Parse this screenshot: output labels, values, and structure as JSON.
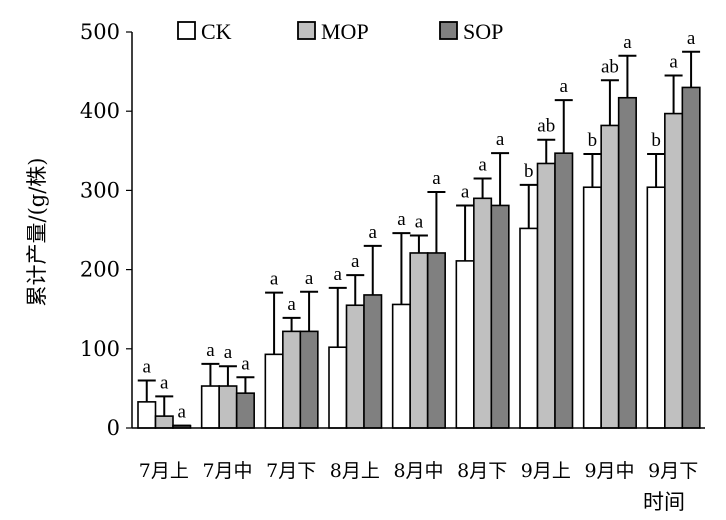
{
  "chart_data": {
    "type": "bar",
    "title": "",
    "xlabel": "时间",
    "ylabel": "累计产量/(g/株)",
    "ylim": [
      0,
      500
    ],
    "yticks": [
      0,
      100,
      200,
      300,
      400,
      500
    ],
    "categories": [
      "7月上",
      "7月中",
      "7月下",
      "8月上",
      "8月中",
      "8月下",
      "9月上",
      "9月中",
      "9月下"
    ],
    "legend_position": "top",
    "series": [
      {
        "name": "CK",
        "color": "#ffffff",
        "values": [
          33,
          53,
          93,
          102,
          156,
          211,
          252,
          304,
          304
        ],
        "errors": [
          27,
          28,
          78,
          75,
          90,
          70,
          55,
          42,
          42
        ],
        "significance": [
          "a",
          "a",
          "a",
          "a",
          "a",
          "a",
          "b",
          "b",
          "b"
        ]
      },
      {
        "name": "MOP",
        "color": "#c0c0c0",
        "values": [
          15,
          53,
          122,
          155,
          221,
          290,
          334,
          382,
          397
        ],
        "errors": [
          25,
          25,
          17,
          38,
          22,
          25,
          30,
          57,
          48
        ],
        "significance": [
          "a",
          "a",
          "a",
          "a",
          "a",
          "a",
          "ab",
          "ab",
          "a"
        ]
      },
      {
        "name": "SOP",
        "color": "#808080",
        "values": [
          3,
          44,
          122,
          168,
          221,
          281,
          347,
          417,
          430
        ],
        "errors": [
          0,
          20,
          50,
          62,
          77,
          66,
          67,
          53,
          45
        ],
        "significance": [
          "a",
          "a",
          "a",
          "a",
          "a",
          "a",
          "a",
          "a",
          "a"
        ]
      }
    ]
  }
}
